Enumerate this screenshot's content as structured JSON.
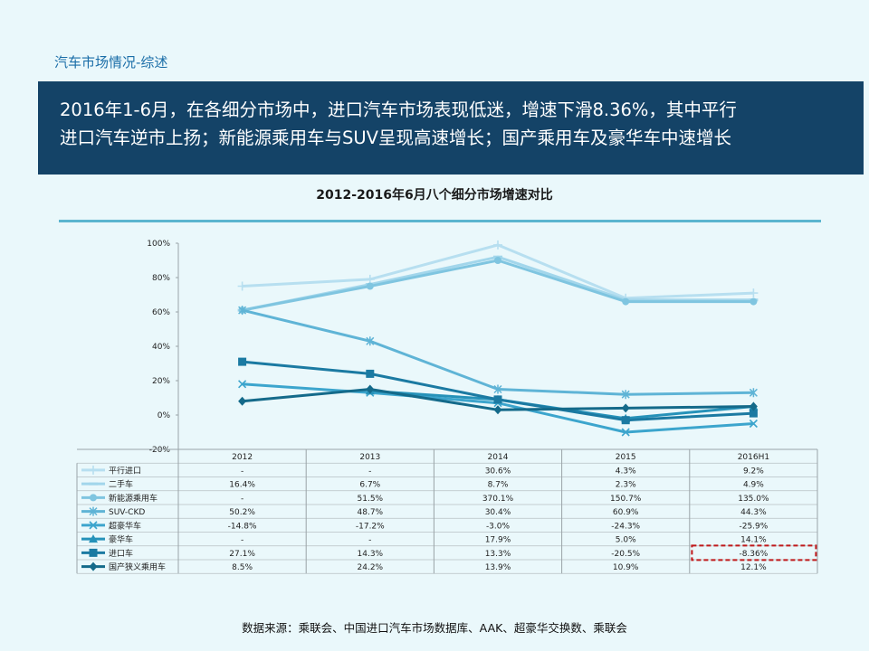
{
  "section_title": "汽车市场情况-综述",
  "headline_lines": [
    "2016年1-6月，在各细分市场中，进口汽车市场表现低迷，增速下滑8.36%，其中平行",
    "进口汽车逆市上扬；新能源乘用车与SUV呈现高速增长；国产乘用车及豪华车中速增长"
  ],
  "source": "数据来源：乘联会、中国进口汽车市场数据库、AAK、超豪华交换数、乘联会",
  "chart_data": {
    "type": "line",
    "title": "2012-2016年6月八个细分市场增速对比",
    "categories": [
      "2012",
      "2013",
      "2014",
      "2015",
      "2016H1"
    ],
    "y_ticks": [
      "100%",
      "80%",
      "60%",
      "40%",
      "20%",
      "0%",
      "-20%"
    ],
    "ylim": [
      -20,
      100
    ],
    "legend_position": "table-left",
    "series": [
      {
        "name": "平行进口",
        "color": "#b7dff0",
        "marker": "plus",
        "values": [
          75,
          79,
          99,
          68,
          71
        ],
        "table": [
          "-",
          "-",
          "30.6%",
          "4.3%",
          "9.2%"
        ]
      },
      {
        "name": "二手车",
        "color": "#a2d6eb",
        "marker": "dash",
        "values": [
          61,
          76,
          92,
          67,
          67
        ],
        "table": [
          "16.4%",
          "6.7%",
          "8.7%",
          "2.3%",
          "4.9%"
        ]
      },
      {
        "name": "新能源乘用车",
        "color": "#7fc5e0",
        "marker": "circle",
        "values": [
          61,
          75,
          90,
          66,
          66
        ],
        "table": [
          "-",
          "51.5%",
          "370.1%",
          "150.7%",
          "135.0%"
        ]
      },
      {
        "name": "SUV-CKD",
        "color": "#5fb4d6",
        "marker": "star",
        "values": [
          61,
          43,
          15,
          12,
          13
        ],
        "table": [
          "50.2%",
          "48.7%",
          "30.4%",
          "60.9%",
          "44.3%"
        ]
      },
      {
        "name": "超豪华车",
        "color": "#3ca5cd",
        "marker": "x",
        "values": [
          18,
          13,
          7,
          -10,
          -5
        ],
        "table": [
          "-14.8%",
          "-17.2%",
          "-3.0%",
          "-24.3%",
          "-25.9%"
        ]
      },
      {
        "name": "豪华车",
        "color": "#2692b9",
        "marker": "triangle",
        "values": [
          null,
          14,
          9,
          -2,
          5
        ],
        "table": [
          "-",
          "-",
          "17.9%",
          "5.0%",
          "14.1%"
        ]
      },
      {
        "name": "进口车",
        "color": "#1b7aa2",
        "marker": "square",
        "values": [
          31,
          24,
          9,
          -3,
          1
        ],
        "table": [
          "27.1%",
          "14.3%",
          "13.3%",
          "-20.5%",
          "-8.36%"
        ]
      },
      {
        "name": "国产狭义乘用车",
        "color": "#146a8a",
        "marker": "diamond",
        "values": [
          8,
          15,
          3,
          4,
          5
        ],
        "table": [
          "8.5%",
          "24.2%",
          "13.9%",
          "10.9%",
          "12.1%"
        ]
      }
    ],
    "highlight_cell": "-8.36%"
  }
}
